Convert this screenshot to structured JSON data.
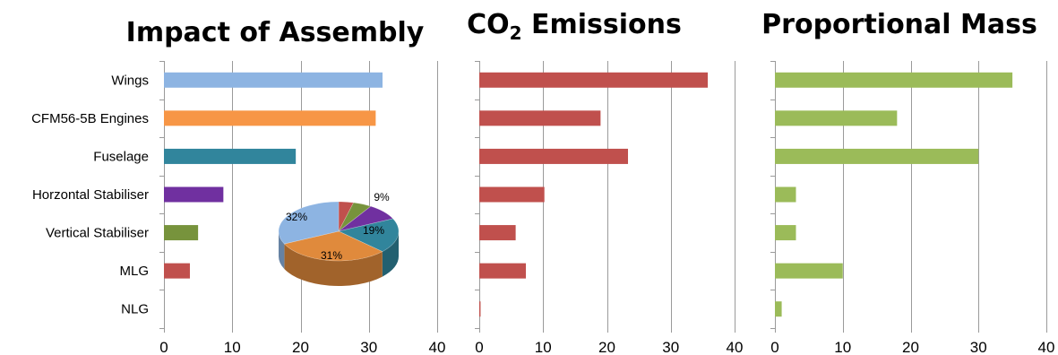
{
  "chart_data": [
    {
      "type": "bar",
      "orientation": "horizontal",
      "title": "Impact of Assembly",
      "categories": [
        "Wings",
        "CFM56-5B Engines",
        "Fuselage",
        "Horzontal Stabiliser",
        "Vertical Stabiliser",
        "MLG",
        "NLG"
      ],
      "values": [
        32,
        31,
        19.3,
        8.7,
        5,
        3.8,
        0
      ],
      "colors": [
        "#8db4e2",
        "#f79646",
        "#31859c",
        "#7030a0",
        "#77933c",
        "#c0504d",
        "#c0504d"
      ],
      "xlim": [
        0,
        40
      ],
      "xticks": [
        0,
        10,
        20,
        30,
        40
      ],
      "grid": true,
      "inset_pie": {
        "type": "pie",
        "style": "3d",
        "slices": [
          {
            "category": "Wings",
            "value": 32,
            "label": "32%",
            "color": "#8db4e2"
          },
          {
            "category": "CFM56-5B Engines",
            "value": 31,
            "label": "31%",
            "color": "#e08a3c"
          },
          {
            "category": "Fuselage",
            "value": 19,
            "label": "19%",
            "color": "#31859c"
          },
          {
            "category": "Horzontal Stabiliser",
            "value": 9,
            "label": "9%",
            "color": "#7030a0"
          },
          {
            "category": "Vertical Stabiliser",
            "value": 5,
            "label": "",
            "color": "#77933c"
          },
          {
            "category": "MLG",
            "value": 4,
            "label": "",
            "color": "#c0504d"
          }
        ]
      }
    },
    {
      "type": "bar",
      "orientation": "horizontal",
      "title_main": "CO",
      "title_sub": "2",
      "title_rest": " Emissions",
      "categories": [
        "Wings",
        "CFM56-5B Engines",
        "Fuselage",
        "Horzontal Stabiliser",
        "Vertical Stabiliser",
        "MLG",
        "NLG"
      ],
      "values": [
        35.8,
        19,
        23.3,
        10.2,
        5.7,
        7.3,
        0.2
      ],
      "color": "#c0504d",
      "xlim": [
        0,
        40
      ],
      "xticks": [
        0,
        10,
        20,
        30,
        40
      ],
      "grid": true
    },
    {
      "type": "bar",
      "orientation": "horizontal",
      "title": "Proportional Mass",
      "categories": [
        "Wings",
        "CFM56-5B Engines",
        "Fuselage",
        "Horzontal Stabiliser",
        "Vertical Stabiliser",
        "MLG",
        "NLG"
      ],
      "values": [
        35,
        18,
        30,
        3.1,
        3.1,
        10,
        1
      ],
      "color": "#9bbb59",
      "xlim": [
        0,
        40
      ],
      "xticks": [
        0,
        10,
        20,
        30,
        40
      ],
      "grid": true
    }
  ]
}
